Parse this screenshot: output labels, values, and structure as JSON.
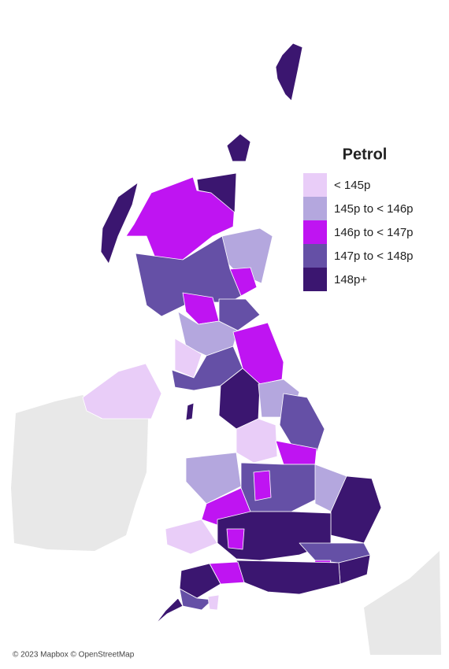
{
  "legend": {
    "title": "Petrol",
    "items": [
      {
        "label": "< 145p",
        "color": "#e9cdf8"
      },
      {
        "label": "145p to < 146p",
        "color": "#b4a7de"
      },
      {
        "label": "146p to < 147p",
        "color": "#bf14f2"
      },
      {
        "label": "147p to < 148p",
        "color": "#6550a6"
      },
      {
        "label": "148p+",
        "color": "#3b1670"
      }
    ]
  },
  "attribution": "© 2023 Mapbox © OpenStreetMap"
}
